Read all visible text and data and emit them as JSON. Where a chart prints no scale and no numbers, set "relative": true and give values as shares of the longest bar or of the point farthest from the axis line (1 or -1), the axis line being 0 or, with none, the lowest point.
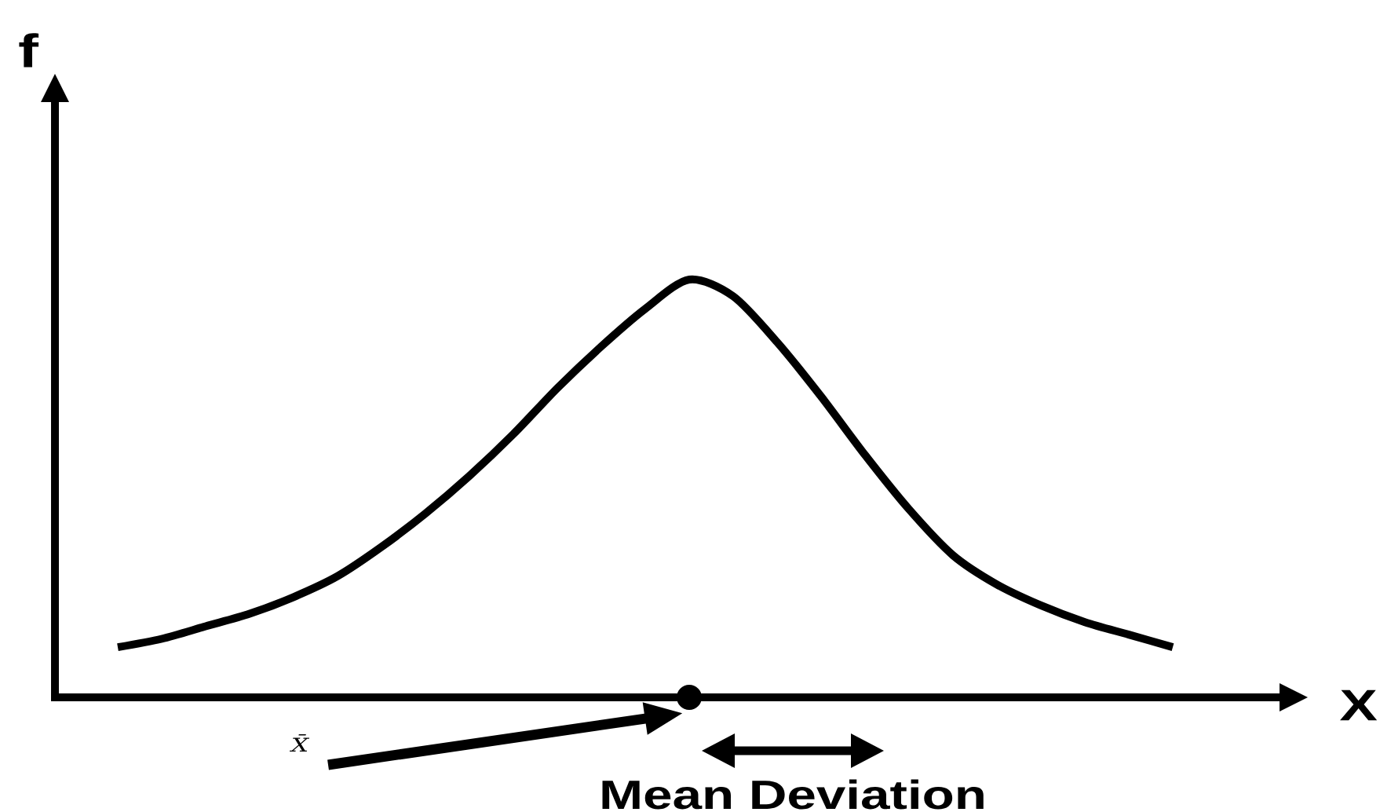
{
  "chart_data": {
    "type": "line",
    "relative": true,
    "xlabel": "X",
    "ylabel": "f",
    "categories": [
      null,
      null,
      null,
      null,
      null,
      null,
      null,
      null,
      null,
      null,
      null,
      null,
      null,
      null,
      null,
      null,
      null,
      null,
      null,
      null,
      null,
      null,
      null,
      null,
      null
    ],
    "values": [
      0.12,
      0.14,
      0.17,
      0.2,
      0.24,
      0.29,
      0.36,
      0.44,
      0.53,
      0.63,
      0.74,
      0.84,
      0.93,
      1,
      0.96,
      0.85,
      0.72,
      0.58,
      0.45,
      0.34,
      0.27,
      0.22,
      0.18,
      0.15,
      0.12
    ],
    "color": "#000000",
    "marker": "none",
    "line_style": "solid",
    "annotations": [
      "X̄",
      "Mean Deviation"
    ]
  }
}
